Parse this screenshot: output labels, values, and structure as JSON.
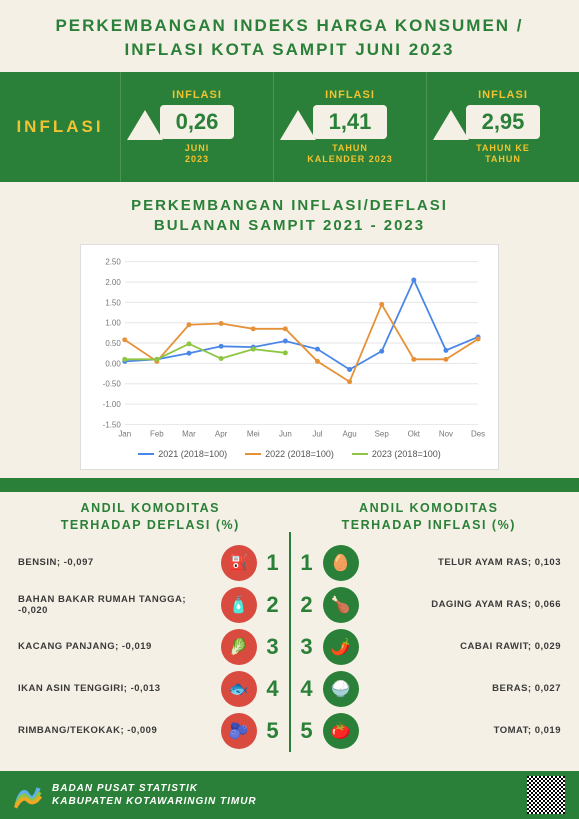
{
  "title_line1": "PERKEMBANGAN INDEKS HARGA KONSUMEN /",
  "title_line2": "INFLASI KOTA SAMPIT JUNI 2023",
  "inflasi_label": "INFLASI",
  "metrics": [
    {
      "head": "INFLASI",
      "value": "0,26",
      "sub": "JUNI\n2023"
    },
    {
      "head": "INFLASI",
      "value": "1,41",
      "sub": "TAHUN\nKALENDER 2023"
    },
    {
      "head": "INFLASI",
      "value": "2,95",
      "sub": "TAHUN KE\nTAHUN"
    }
  ],
  "chart": {
    "title_l1": "PERKEMBANGAN INFLASI/DEFLASI",
    "title_l2": "BULANAN SAMPIT 2021 - 2023",
    "type": "line",
    "categories": [
      "Jan",
      "Feb",
      "Mar",
      "Apr",
      "Mei",
      "Jun",
      "Jul",
      "Agu",
      "Sep",
      "Okt",
      "Nov",
      "Des"
    ],
    "ylim": [
      -1.5,
      2.5
    ],
    "yticks": [
      -1.5,
      -1.0,
      -0.5,
      0,
      0.5,
      1.0,
      1.5,
      2.0,
      2.5
    ],
    "grid_color": "#e6e6e6",
    "axis_color": "#bdbdbd",
    "label_fontsize": 8,
    "series": [
      {
        "name": "2021 (2018=100)",
        "color": "#4a86e8",
        "values": [
          0.05,
          0.1,
          0.25,
          0.42,
          0.4,
          0.55,
          0.35,
          -0.15,
          0.3,
          2.05,
          0.32,
          0.65
        ]
      },
      {
        "name": "2022 (2018=100)",
        "color": "#e69138",
        "values": [
          0.58,
          0.05,
          0.95,
          0.98,
          0.85,
          0.85,
          0.05,
          -0.45,
          1.45,
          0.1,
          0.1,
          0.6
        ]
      },
      {
        "name": "2023 (2018=100)",
        "color": "#8ec641",
        "values": [
          0.1,
          0.1,
          0.48,
          0.12,
          0.35,
          0.26,
          null,
          null,
          null,
          null,
          null,
          null
        ]
      }
    ]
  },
  "deflasi": {
    "title_l1": "ANDIL KOMODITAS",
    "title_l2": "TERHADAP DEFLASI (%)",
    "icon_bg": "#d94a3f",
    "items": [
      {
        "label": "BENSIN; -0,097",
        "rank": "1",
        "emoji": "⛽"
      },
      {
        "label": "BAHAN BAKAR RUMAH TANGGA;\n-0,020",
        "rank": "2",
        "emoji": "🧴"
      },
      {
        "label": "KACANG PANJANG; -0,019",
        "rank": "3",
        "emoji": "🥬"
      },
      {
        "label": "IKAN ASIN TENGGIRI; -0,013",
        "rank": "4",
        "emoji": "🐟"
      },
      {
        "label": "RIMBANG/TEKOKAK; -0,009",
        "rank": "5",
        "emoji": "🫐"
      }
    ]
  },
  "inflasi_comm": {
    "title_l1": "ANDIL KOMODITAS",
    "title_l2": "TERHADAP INFLASI (%)",
    "icon_bg": "#2a8038",
    "items": [
      {
        "label": "TELUR AYAM RAS;  0,103",
        "rank": "1",
        "emoji": "🥚"
      },
      {
        "label": "DAGING AYAM RAS; 0,066",
        "rank": "2",
        "emoji": "🍗"
      },
      {
        "label": "CABAI RAWIT;  0,029",
        "rank": "3",
        "emoji": "🌶️"
      },
      {
        "label": "BERAS; 0,027",
        "rank": "4",
        "emoji": "🍚"
      },
      {
        "label": "TOMAT; 0,019",
        "rank": "5",
        "emoji": "🍅"
      }
    ]
  },
  "footer": {
    "org1": "BADAN PUSAT STATISTIK",
    "org2": "KABUPATEN KOTAWARINGIN TIMUR"
  },
  "colors": {
    "green": "#2a8038",
    "gold": "#f1c232",
    "cream": "#f5f0e6"
  }
}
